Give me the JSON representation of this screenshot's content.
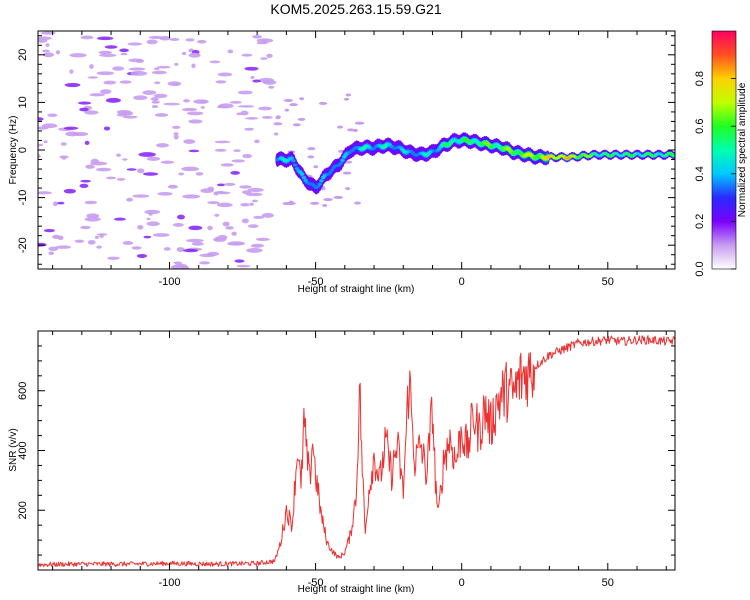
{
  "figure": {
    "title": "KOM5.2025.263.15.59.G21"
  },
  "chart_data": [
    {
      "type": "heatmap",
      "panel": "spectrogram",
      "title": "KOM5.2025.263.15.59.G21",
      "xlabel": "Height of straight line (km)",
      "ylabel": "Frequency (Hz)",
      "xlim": [
        -145,
        73
      ],
      "ylim": [
        -25,
        25
      ],
      "xticks": [
        -100,
        -50,
        0,
        50
      ],
      "yticks": [
        -20,
        -10,
        0,
        10,
        20
      ],
      "xtick_labels": [
        "-100",
        "-50",
        "0",
        "50"
      ],
      "ytick_labels": [
        "-20",
        "-10",
        "0",
        "10",
        "20"
      ],
      "ridge": {
        "x": [
          -63,
          -58,
          -54,
          -50,
          -46,
          -42,
          -38,
          -34,
          -30,
          -26,
          -22,
          -18,
          -14,
          -10,
          -6,
          -2,
          2,
          6,
          10,
          14,
          18,
          22,
          26,
          30,
          34,
          38,
          42,
          46,
          50,
          54,
          58,
          62,
          66,
          70,
          73
        ],
        "frequency": [
          -2,
          -2,
          -6,
          -8,
          -5,
          -3,
          0,
          0.5,
          0.5,
          1,
          0.5,
          -0.5,
          -1,
          -0.5,
          1,
          2,
          2,
          1.5,
          1,
          0.5,
          -0.5,
          -1,
          -1.5,
          -1.5,
          -1.5,
          -1.5,
          -1.2,
          -1,
          -1,
          -1,
          -1,
          -1,
          -1,
          -1,
          -1
        ],
        "amplitude": [
          0.3,
          0.45,
          0.3,
          0.35,
          0.3,
          0.3,
          0.35,
          0.4,
          0.4,
          0.4,
          0.38,
          0.35,
          0.35,
          0.4,
          0.45,
          0.5,
          0.5,
          0.55,
          0.55,
          0.55,
          0.6,
          0.6,
          0.65,
          0.7,
          0.75,
          0.7,
          0.6,
          0.5,
          0.5,
          0.5,
          0.5,
          0.5,
          0.5,
          0.5,
          0.5
        ]
      },
      "noise_region_x": [
        -145,
        -65
      ],
      "noise_amplitude": 0.1
    },
    {
      "type": "colorbar",
      "label": "Normalized spectral amplitude",
      "range": [
        0,
        1
      ],
      "ticks": [
        0.0,
        0.2,
        0.4,
        0.6,
        0.8
      ],
      "tick_labels": [
        "0.0",
        "0.2",
        "0.4",
        "0.6",
        "0.8"
      ],
      "colormap": [
        "#ffffff",
        "#c89cf0",
        "#7a00ff",
        "#2a2aff",
        "#00c8ff",
        "#00ffb0",
        "#20ff20",
        "#c0ff00",
        "#ffd000",
        "#ff5020",
        "#ff0060"
      ]
    },
    {
      "type": "line",
      "panel": "snr",
      "xlabel": "Height of straight line (km)",
      "ylabel": "SNR (v/v)",
      "xlim": [
        -145,
        73
      ],
      "ylim": [
        0,
        800
      ],
      "xticks": [
        -100,
        -50,
        0,
        50
      ],
      "yticks": [
        200,
        400,
        600
      ],
      "xtick_labels": [
        "-100",
        "-50",
        "0",
        "50"
      ],
      "ytick_labels": [
        "200",
        "400",
        "600"
      ],
      "color": "#ee3030",
      "series": [
        {
          "name": "SNR",
          "x": [
            -145,
            -130,
            -115,
            -100,
            -85,
            -70,
            -64,
            -62,
            -60,
            -58,
            -57,
            -56,
            -55,
            -54,
            -53,
            -52,
            -51,
            -50,
            -48,
            -46,
            -44,
            -42,
            -40,
            -38,
            -36,
            -35,
            -34,
            -33,
            -32,
            -30,
            -28,
            -26,
            -24,
            -22,
            -20,
            -18,
            -17,
            -16,
            -14,
            -12,
            -10,
            -9,
            -8,
            -6,
            -4,
            -2,
            0,
            2,
            4,
            6,
            8,
            10,
            12,
            15,
            18,
            20,
            25,
            30,
            35,
            40,
            45,
            50,
            55,
            60,
            65,
            70,
            73
          ],
          "y": [
            18,
            20,
            20,
            22,
            20,
            22,
            30,
            90,
            200,
            150,
            300,
            420,
            260,
            500,
            380,
            300,
            440,
            320,
            180,
            90,
            60,
            40,
            60,
            120,
            260,
            620,
            340,
            120,
            250,
            380,
            300,
            430,
            320,
            420,
            260,
            650,
            500,
            360,
            420,
            320,
            550,
            300,
            180,
            380,
            440,
            360,
            470,
            400,
            520,
            460,
            540,
            480,
            560,
            600,
            590,
            640,
            680,
            720,
            740,
            760,
            765,
            770,
            765,
            770,
            770,
            765,
            768
          ]
        }
      ]
    }
  ]
}
